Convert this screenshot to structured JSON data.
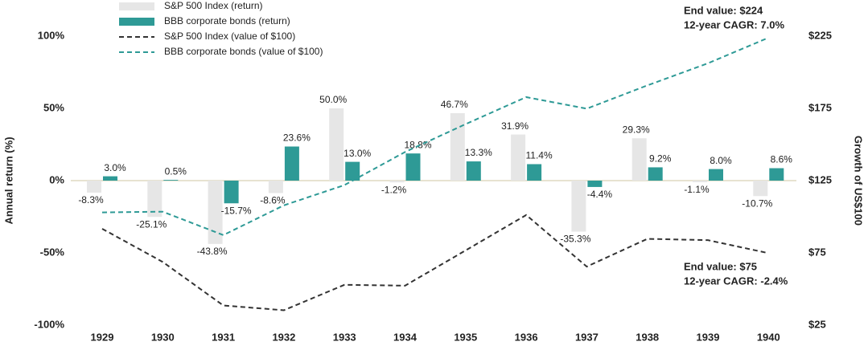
{
  "chart_data": {
    "type": "combo",
    "categories": [
      "1929",
      "1930",
      "1931",
      "1932",
      "1933",
      "1934",
      "1935",
      "1936",
      "1937",
      "1938",
      "1939",
      "1940"
    ],
    "ylabel": "Annual return (%)",
    "y2label": "Growth of US$100",
    "ylim": [
      -100,
      100
    ],
    "yticks": [
      {
        "value": -100,
        "label": "-100%"
      },
      {
        "value": -50,
        "label": "-50%"
      },
      {
        "value": 0,
        "label": "0%"
      },
      {
        "value": 50,
        "label": "50%"
      },
      {
        "value": 100,
        "label": "100%"
      }
    ],
    "y2lim": [
      25,
      225
    ],
    "y2ticks": [
      {
        "value": 25,
        "label": "$25"
      },
      {
        "value": 75,
        "label": "$75"
      },
      {
        "value": 125,
        "label": "$125"
      },
      {
        "value": 175,
        "label": "$175"
      },
      {
        "value": 225,
        "label": "$225"
      }
    ],
    "series": [
      {
        "name": "S&P 500 Index (return)",
        "type": "bar",
        "color": "#e6e6e6",
        "values": [
          -8.3,
          -25.1,
          -43.8,
          -8.6,
          50.0,
          -1.2,
          46.7,
          31.9,
          -35.3,
          29.3,
          -1.1,
          -10.7
        ],
        "value_labels": [
          "-8.3%",
          "-25.1%",
          "-43.8%",
          "-8.6%",
          "50.0%",
          "-1.2%",
          "46.7%",
          "31.9%",
          "-35.3%",
          "29.3%",
          "-1.1%",
          "-10.7%"
        ]
      },
      {
        "name": "BBB corporate bonds (return)",
        "type": "bar",
        "color": "#2e9a96",
        "values": [
          3.0,
          0.5,
          -15.7,
          23.6,
          13.0,
          18.8,
          13.3,
          11.4,
          -4.4,
          9.2,
          8.0,
          8.6
        ],
        "value_labels": [
          "3.0%",
          "0.5%",
          "-15.7%",
          "23.6%",
          "13.0%",
          "18.8%",
          "13.3%",
          "11.4%",
          "-4.4%",
          "9.2%",
          "8.0%",
          "8.6%"
        ]
      },
      {
        "name": "S&P 500 Index (value of $100)",
        "type": "line",
        "axis": "y2",
        "color": "#333333",
        "values": [
          91.7,
          68.7,
          38.6,
          35.3,
          52.9,
          52.3,
          76.7,
          101.2,
          65.5,
          84.7,
          83.8,
          74.8
        ]
      },
      {
        "name": "BBB corporate bonds (value of $100)",
        "type": "line",
        "axis": "y2",
        "color": "#2e9a96",
        "values": [
          103.0,
          103.5,
          87.3,
          107.9,
          121.9,
          144.8,
          164.1,
          182.8,
          174.8,
          190.9,
          206.2,
          223.9
        ]
      }
    ],
    "annotations": [
      [
        "End value: $224",
        "12-year CAGR: 7.0%"
      ],
      [
        "End value: $75",
        "12-year CAGR: -2.4%"
      ]
    ]
  }
}
